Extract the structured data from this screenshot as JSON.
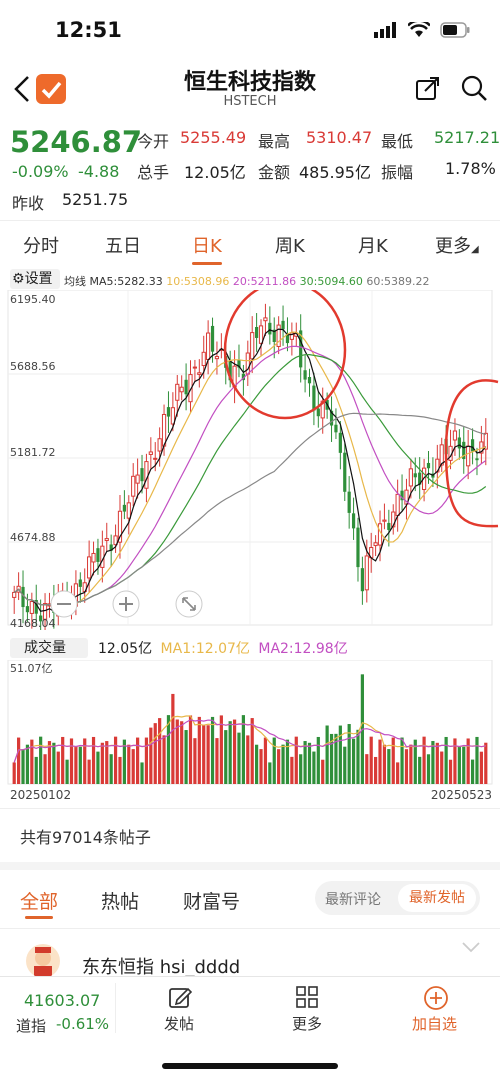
{
  "status": {
    "time": "12:51"
  },
  "header": {
    "title": "恒生科技指数",
    "subtitle": "HSTECH"
  },
  "quote": {
    "price": "5246.87",
    "change_pct": "-0.09%",
    "change": "-4.88",
    "prev_close_label": "昨收",
    "prev_close": "5251.75",
    "open_label": "今开",
    "open": "5255.49",
    "high_label": "最高",
    "high": "5310.47",
    "low_label": "最低",
    "low": "5217.21",
    "volume_label": "总手",
    "volume": "12.05亿",
    "amount_label": "金额",
    "amount": "485.95亿",
    "amplitude_label": "振幅",
    "amplitude": "1.78%"
  },
  "tabs": [
    "分时",
    "五日",
    "日K",
    "周K",
    "月K",
    "更多"
  ],
  "chart": {
    "settings_label": "设置",
    "ma_label": "均线",
    "ma5": "MA5:5282.33",
    "ma10": "10:5308.96",
    "ma20": "20:5211.86",
    "ma30": "30:5094.60",
    "ma60": "60:5389.22",
    "y_labels": [
      "6195.40",
      "5688.56",
      "5181.72",
      "4674.88",
      "4168.04"
    ],
    "volume_label": "成交量",
    "volume_value": "12.05亿",
    "vol_ma1": "MA1:12.07亿",
    "vol_ma2": "MA2:12.98亿",
    "vol_max": "51.07亿",
    "date_start": "20250102",
    "date_end": "20250523",
    "colors": {
      "up": "#d93a36",
      "down": "#2f8f3a",
      "ma5": "#111111",
      "ma10": "#e8b84a",
      "ma20": "#c24fc2",
      "ma30": "#3a9a3a",
      "ma60": "#888888"
    }
  },
  "posts": {
    "count_text": "共有97014条帖子",
    "tabs": [
      "全部",
      "热帖",
      "财富号"
    ],
    "sort_options": [
      "最新评论",
      "最新发帖"
    ],
    "first_author": "东东恒指 hsi_dddd"
  },
  "bottom_nav": {
    "dow_value": "41603.07",
    "dow_label": "道指",
    "dow_change": "-0.61%",
    "post_label": "发帖",
    "more_label": "更多",
    "add_label": "加自选"
  }
}
